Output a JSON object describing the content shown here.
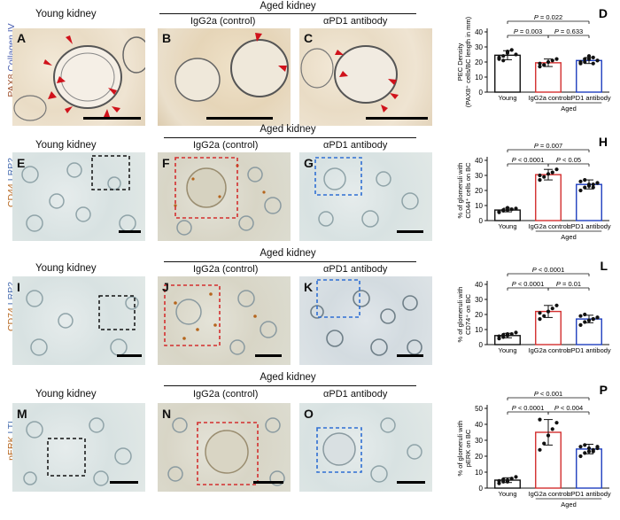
{
  "row1": {
    "stain": [
      "PAX8",
      "Collagen IV"
    ],
    "stain_colors": [
      "#a0522d",
      "#4a5fb0"
    ],
    "young_title": "Young kidney",
    "aged_title": "Aged kidney",
    "igg_title": "IgG2a (control)",
    "apd1_title": "αPD1 antibody",
    "panels": [
      "A",
      "B",
      "C"
    ]
  },
  "row2": {
    "stain": [
      "CD44",
      "LRP2"
    ],
    "stain_colors": [
      "#b5651d",
      "#4a6fb0"
    ],
    "young_title": "Young kidney",
    "aged_title": "Aged kidney",
    "igg_title": "IgG2a (control)",
    "apd1_title": "αPD1 antibody",
    "panels": [
      "E",
      "F",
      "G"
    ]
  },
  "row3": {
    "stain": [
      "CD74",
      "LRP2"
    ],
    "stain_colors": [
      "#b5651d",
      "#4a6fb0"
    ],
    "young_title": "Young kidney",
    "aged_title": "Aged kidney",
    "igg_title": "IgG2a (control)",
    "apd1_title": "αPD1 antibody",
    "panels": [
      "I",
      "J",
      "K"
    ]
  },
  "row4": {
    "stain": [
      "pERK",
      "LTL"
    ],
    "stain_colors": [
      "#b5651d",
      "#4a6fb0"
    ],
    "young_title": "Young kidney",
    "aged_title": "Aged kidney",
    "igg_title": "IgG2a (control)",
    "apd1_title": "αPD1 antibody",
    "panels": [
      "M",
      "N",
      "O"
    ]
  },
  "chart_data": [
    {
      "panel": "D",
      "type": "bar",
      "categories": [
        "Young",
        "IgG2a control",
        "αPD1 antibody"
      ],
      "group_label": "Aged",
      "ylabel_line1": "PEC Density",
      "ylabel_line2": "(PAX8⁺ cells/BC length in mm)",
      "ylim": [
        0,
        40
      ],
      "yticks": [
        0,
        10,
        20,
        30,
        40
      ],
      "means": [
        24.5,
        19.5,
        21
      ],
      "sd": [
        3,
        2.5,
        2
      ],
      "points": [
        [
          22,
          24,
          26,
          28,
          25,
          23,
          21,
          27
        ],
        [
          17,
          18,
          20,
          21,
          22,
          19,
          18
        ],
        [
          19,
          20,
          22,
          23,
          21,
          20,
          22,
          24,
          19,
          21
        ]
      ],
      "colors": [
        "#111111",
        "#d32f2f",
        "#1f3fbf"
      ],
      "comparisons": [
        {
          "from": 0,
          "to": 1,
          "label": "P = 0.003",
          "level": 1
        },
        {
          "from": 1,
          "to": 2,
          "label": "P = 0.633",
          "level": 1
        },
        {
          "from": 0,
          "to": 2,
          "label": "P = 0.022",
          "level": 2
        }
      ]
    },
    {
      "panel": "H",
      "type": "bar",
      "categories": [
        "Young",
        "IgG2a control",
        "αPD1 antibody"
      ],
      "group_label": "Aged",
      "ylabel_line1": "% of glomeruli with",
      "ylabel_line2": "CD44⁺ cells on BC",
      "ylim": [
        0,
        40
      ],
      "yticks": [
        0,
        10,
        20,
        30,
        40
      ],
      "means": [
        7,
        30.5,
        24
      ],
      "sd": [
        1.2,
        3.5,
        3
      ],
      "points": [
        [
          5.5,
          6.5,
          7,
          7.5,
          8,
          6,
          7,
          8.5
        ],
        [
          27,
          29,
          31,
          32,
          34,
          30
        ],
        [
          20,
          22,
          23,
          24,
          25,
          26,
          27,
          24,
          22,
          25
        ]
      ],
      "colors": [
        "#111111",
        "#d32f2f",
        "#1f3fbf"
      ],
      "comparisons": [
        {
          "from": 0,
          "to": 1,
          "label": "P < 0.0001",
          "level": 1
        },
        {
          "from": 1,
          "to": 2,
          "label": "P < 0.05",
          "level": 1
        },
        {
          "from": 0,
          "to": 2,
          "label": "P = 0.007",
          "level": 2
        }
      ]
    },
    {
      "panel": "L",
      "type": "bar",
      "categories": [
        "Young",
        "IgG2a control",
        "αPD1 antibody"
      ],
      "group_label": "",
      "ylabel_line1": "% of glomeruli with",
      "ylabel_line2": "CD74⁺ on BC",
      "ylim": [
        0,
        40
      ],
      "yticks": [
        0,
        10,
        20,
        30,
        40
      ],
      "means": [
        6,
        22,
        17
      ],
      "sd": [
        1.5,
        4,
        2.5
      ],
      "points": [
        [
          4,
          5,
          6,
          7,
          8,
          5.5,
          6.5,
          7
        ],
        [
          17,
          19,
          22,
          24,
          26,
          21
        ],
        [
          13,
          15,
          16,
          17,
          18,
          19,
          20,
          16,
          17,
          18
        ]
      ],
      "colors": [
        "#111111",
        "#d32f2f",
        "#1f3fbf"
      ],
      "comparisons": [
        {
          "from": 0,
          "to": 1,
          "label": "P < 0.0001",
          "level": 1
        },
        {
          "from": 1,
          "to": 2,
          "label": "P = 0.01",
          "level": 1
        },
        {
          "from": 0,
          "to": 2,
          "label": "P < 0.0001",
          "level": 2
        }
      ]
    },
    {
      "panel": "P",
      "type": "bar",
      "categories": [
        "Young",
        "IgG2a control",
        "αPD1 antibody"
      ],
      "group_label": "Aged",
      "ylabel_line1": "% of glomeruli with",
      "ylabel_line2": "pERK on BC",
      "ylim": [
        0,
        50
      ],
      "yticks": [
        0,
        10,
        20,
        30,
        40,
        50
      ],
      "means": [
        5,
        35,
        24.5
      ],
      "sd": [
        1.5,
        8,
        3
      ],
      "points": [
        [
          3,
          4,
          5,
          6,
          7,
          4.5,
          5.5,
          4
        ],
        [
          24,
          28,
          33,
          37,
          41,
          43
        ],
        [
          20,
          22,
          23,
          24,
          25,
          26,
          27,
          25,
          23,
          26
        ]
      ],
      "colors": [
        "#111111",
        "#d32f2f",
        "#1f3fbf"
      ],
      "comparisons": [
        {
          "from": 0,
          "to": 1,
          "label": "P < 0.0001",
          "level": 1
        },
        {
          "from": 1,
          "to": 2,
          "label": "P < 0.004",
          "level": 1
        },
        {
          "from": 0,
          "to": 2,
          "label": "P < 0.001",
          "level": 2
        }
      ]
    }
  ],
  "chart_letters": [
    "D",
    "H",
    "L",
    "P"
  ]
}
